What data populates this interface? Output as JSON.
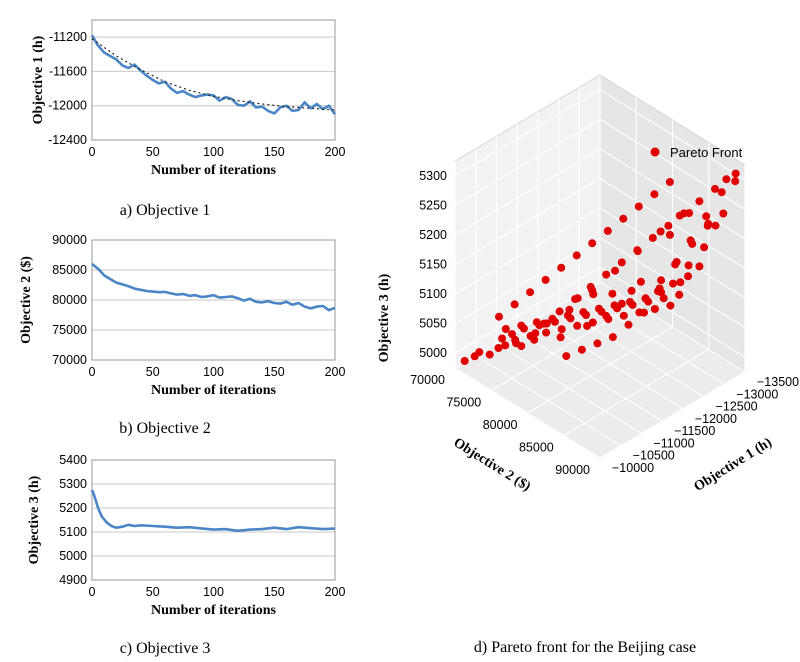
{
  "chart_data": [
    {
      "type": "line",
      "caption": "a) Objective 1",
      "xlabel": "Number of iterations",
      "ylabel": "Objective 1 (h)",
      "xlim": [
        0,
        200
      ],
      "ylim": [
        -12400,
        -11000
      ],
      "x_ticks": [
        "0",
        "50",
        "100",
        "150",
        "200"
      ],
      "y_ticks": [
        "-11200",
        "-11600",
        "-12000",
        "-12400"
      ],
      "y_tick_values": [
        -11200,
        -11600,
        -12000,
        -12400
      ],
      "grid": "horizontal",
      "series": [
        {
          "style": "solid",
          "color": "#4a86c5",
          "x": [
            0,
            5,
            10,
            15,
            20,
            25,
            30,
            35,
            40,
            45,
            50,
            55,
            60,
            65,
            70,
            75,
            80,
            85,
            90,
            95,
            100,
            105,
            110,
            115,
            120,
            125,
            130,
            135,
            140,
            145,
            150,
            155,
            160,
            165,
            170,
            175,
            180,
            185,
            190,
            195,
            200
          ],
          "y": [
            -11180,
            -11300,
            -11380,
            -11420,
            -11460,
            -11530,
            -11560,
            -11520,
            -11590,
            -11650,
            -11700,
            -11740,
            -11720,
            -11800,
            -11850,
            -11830,
            -11870,
            -11900,
            -11880,
            -11870,
            -11880,
            -11940,
            -11900,
            -11920,
            -11990,
            -12000,
            -11950,
            -12020,
            -12010,
            -12060,
            -12090,
            -12020,
            -12000,
            -12060,
            -12050,
            -11960,
            -12030,
            -11980,
            -12040,
            -12000,
            -12100
          ]
        },
        {
          "style": "dotted",
          "color": "#222222",
          "x": [
            0,
            20,
            40,
            60,
            80,
            100,
            120,
            140,
            160,
            180,
            200
          ],
          "y": [
            -11220,
            -11420,
            -11580,
            -11720,
            -11820,
            -11890,
            -11940,
            -11980,
            -12010,
            -12030,
            -12050
          ]
        }
      ]
    },
    {
      "type": "line",
      "caption": "b) Objective 2",
      "xlabel": "Number of iterations",
      "ylabel": "Objective 2 ($)",
      "xlim": [
        0,
        200
      ],
      "ylim": [
        70000,
        90000
      ],
      "x_ticks": [
        "0",
        "50",
        "100",
        "150",
        "200"
      ],
      "y_ticks": [
        "90000",
        "85000",
        "80000",
        "75000",
        "70000"
      ],
      "y_tick_values": [
        90000,
        85000,
        80000,
        75000,
        70000
      ],
      "grid": "horizontal",
      "series": [
        {
          "style": "solid",
          "color": "#4a86c5",
          "x": [
            0,
            5,
            10,
            15,
            20,
            25,
            30,
            35,
            40,
            45,
            50,
            55,
            60,
            65,
            70,
            75,
            80,
            85,
            90,
            95,
            100,
            105,
            110,
            115,
            120,
            125,
            130,
            135,
            140,
            145,
            150,
            155,
            160,
            165,
            170,
            175,
            180,
            185,
            190,
            195,
            200
          ],
          "y": [
            86000,
            85200,
            84100,
            83500,
            82900,
            82600,
            82300,
            81900,
            81700,
            81500,
            81400,
            81300,
            81350,
            81100,
            80900,
            81000,
            80700,
            80800,
            80500,
            80600,
            80800,
            80400,
            80500,
            80600,
            80300,
            79900,
            80200,
            79700,
            79600,
            79800,
            79500,
            79400,
            79700,
            79200,
            79500,
            78900,
            78600,
            78900,
            79000,
            78300,
            78700
          ]
        }
      ]
    },
    {
      "type": "line",
      "caption": "c) Objective 3",
      "xlabel": "Number of iterations",
      "ylabel": "Objective 3 (h)",
      "xlim": [
        0,
        200
      ],
      "ylim": [
        4900,
        5400
      ],
      "x_ticks": [
        "0",
        "50",
        "100",
        "150",
        "200"
      ],
      "y_ticks": [
        "5400",
        "5300",
        "5200",
        "5100",
        "5000",
        "4900"
      ],
      "y_tick_values": [
        5400,
        5300,
        5200,
        5100,
        5000,
        4900
      ],
      "grid": "horizontal",
      "series": [
        {
          "style": "solid",
          "color": "#4a86c5",
          "x": [
            0,
            2,
            5,
            8,
            12,
            16,
            20,
            25,
            30,
            35,
            40,
            50,
            60,
            70,
            80,
            90,
            100,
            110,
            120,
            130,
            140,
            150,
            160,
            170,
            180,
            190,
            200
          ],
          "y": [
            5275,
            5250,
            5200,
            5165,
            5140,
            5125,
            5118,
            5122,
            5130,
            5125,
            5128,
            5125,
            5122,
            5118,
            5120,
            5115,
            5110,
            5112,
            5105,
            5110,
            5112,
            5118,
            5112,
            5120,
            5116,
            5112,
            5114
          ]
        }
      ]
    },
    {
      "type": "scatter",
      "caption": "d) Pareto front for the Beijing case",
      "xlabel": "Objective 1 (h)",
      "ylabel": "Objective 2 ($)",
      "zlabel": "Objective 3 (h)",
      "xlim": [
        -10000,
        -13500
      ],
      "ylim": [
        70000,
        90000
      ],
      "zlim": [
        4975,
        5325
      ],
      "x_ticks": [
        "−10000",
        "−10500",
        "−11000",
        "−11500",
        "−12000",
        "−12500",
        "−13000",
        "−13500"
      ],
      "x_tick_values": [
        -10000,
        -10500,
        -11000,
        -11500,
        -12000,
        -12500,
        -13000,
        -13500
      ],
      "y_ticks": [
        "70000",
        "75000",
        "80000",
        "85000",
        "90000"
      ],
      "y_tick_values": [
        70000,
        75000,
        80000,
        85000,
        90000
      ],
      "z_ticks": [
        "5000",
        "5050",
        "5100",
        "5150",
        "5200",
        "5250",
        "5300"
      ],
      "z_tick_values": [
        5000,
        5050,
        5100,
        5150,
        5200,
        5250,
        5300
      ],
      "legend": {
        "label": "Pareto Front",
        "placement": "top-right"
      },
      "marker_color": "#e00000",
      "points": [
        {
          "o1": -11050,
          "o2": 70500,
          "o3": 4985
        },
        {
          "o1": -11200,
          "o2": 71000,
          "o3": 4990
        },
        {
          "o1": -11400,
          "o2": 71500,
          "o3": 4995
        },
        {
          "o1": -11100,
          "o2": 72000,
          "o3": 4992
        },
        {
          "o1": -11600,
          "o2": 72500,
          "o3": 5000
        },
        {
          "o1": -11300,
          "o2": 73000,
          "o3": 4998
        },
        {
          "o1": -11800,
          "o2": 73500,
          "o3": 5005
        },
        {
          "o1": -11500,
          "o2": 74000,
          "o3": 5003
        },
        {
          "o1": -12000,
          "o2": 74500,
          "o3": 5010
        },
        {
          "o1": -11700,
          "o2": 75000,
          "o3": 5008
        },
        {
          "o1": -12200,
          "o2": 75500,
          "o3": 5015
        },
        {
          "o1": -11900,
          "o2": 76000,
          "o3": 5013
        },
        {
          "o1": -12400,
          "o2": 76500,
          "o3": 5020
        },
        {
          "o1": -12100,
          "o2": 77000,
          "o3": 5018
        },
        {
          "o1": -12600,
          "o2": 77500,
          "o3": 5025
        },
        {
          "o1": -12300,
          "o2": 78000,
          "o3": 5023
        },
        {
          "o1": -12800,
          "o2": 78500,
          "o3": 5030
        },
        {
          "o1": -12500,
          "o2": 79000,
          "o3": 5028
        },
        {
          "o1": -13000,
          "o2": 79500,
          "o3": 5035
        },
        {
          "o1": -12700,
          "o2": 80000,
          "o3": 5033
        },
        {
          "o1": -13200,
          "o2": 80500,
          "o3": 5040
        },
        {
          "o1": -12900,
          "o2": 81000,
          "o3": 5038
        },
        {
          "o1": -13400,
          "o2": 81500,
          "o3": 5045
        },
        {
          "o1": -13100,
          "o2": 82000,
          "o3": 5043
        },
        {
          "o1": -10800,
          "o2": 71500,
          "o3": 5040
        },
        {
          "o1": -11000,
          "o2": 72500,
          "o3": 5060
        },
        {
          "o1": -11200,
          "o2": 73500,
          "o3": 5080
        },
        {
          "o1": -11400,
          "o2": 74500,
          "o3": 5100
        },
        {
          "o1": -11600,
          "o2": 75500,
          "o3": 5120
        },
        {
          "o1": -11800,
          "o2": 76500,
          "o3": 5140
        },
        {
          "o1": -12000,
          "o2": 77500,
          "o3": 5160
        },
        {
          "o1": -12200,
          "o2": 78500,
          "o3": 5180
        },
        {
          "o1": -12400,
          "o2": 79500,
          "o3": 5200
        },
        {
          "o1": -12600,
          "o2": 80500,
          "o3": 5220
        },
        {
          "o1": -12800,
          "o2": 81500,
          "o3": 5240
        },
        {
          "o1": -13000,
          "o2": 82500,
          "o3": 5260
        },
        {
          "o1": -11100,
          "o2": 76000,
          "o3": 5050
        },
        {
          "o1": -11300,
          "o2": 77000,
          "o3": 5070
        },
        {
          "o1": -11500,
          "o2": 78000,
          "o3": 5090
        },
        {
          "o1": -11700,
          "o2": 79000,
          "o3": 5110
        },
        {
          "o1": -11900,
          "o2": 80000,
          "o3": 5130
        },
        {
          "o1": -12100,
          "o2": 81000,
          "o3": 5150
        },
        {
          "o1": -12300,
          "o2": 82000,
          "o3": 5170
        },
        {
          "o1": -12500,
          "o2": 83000,
          "o3": 5190
        },
        {
          "o1": -12700,
          "o2": 84000,
          "o3": 5210
        },
        {
          "o1": -12900,
          "o2": 85000,
          "o3": 5230
        },
        {
          "o1": -13100,
          "o2": 86000,
          "o3": 5250
        },
        {
          "o1": -13300,
          "o2": 87000,
          "o3": 5270
        },
        {
          "o1": -13400,
          "o2": 88000,
          "o3": 5290
        },
        {
          "o1": -13450,
          "o2": 89000,
          "o3": 5305
        },
        {
          "o1": -13350,
          "o2": 89500,
          "o3": 5300
        },
        {
          "o1": -13200,
          "o2": 88500,
          "o3": 5280
        },
        {
          "o1": -13000,
          "o2": 87500,
          "o3": 5240
        },
        {
          "o1": -12800,
          "o2": 86500,
          "o3": 5200
        },
        {
          "o1": -12600,
          "o2": 85500,
          "o3": 5160
        },
        {
          "o1": -12400,
          "o2": 84500,
          "o3": 5120
        },
        {
          "o1": -12200,
          "o2": 83500,
          "o3": 5080
        },
        {
          "o1": -12000,
          "o2": 82500,
          "o3": 5060
        },
        {
          "o1": -11800,
          "o2": 81500,
          "o3": 5040
        },
        {
          "o1": -11600,
          "o2": 80500,
          "o3": 5030
        },
        {
          "o1": -11400,
          "o2": 79500,
          "o3": 5020
        },
        {
          "o1": -11200,
          "o2": 78500,
          "o3": 5010
        },
        {
          "o1": -10900,
          "o2": 74000,
          "o3": 5005
        },
        {
          "o1": -10700,
          "o2": 72000,
          "o3": 4995
        },
        {
          "o1": -10600,
          "o2": 73500,
          "o3": 5015
        },
        {
          "o1": -10900,
          "o2": 77500,
          "o3": 5070
        },
        {
          "o1": -11100,
          "o2": 79500,
          "o3": 5100
        },
        {
          "o1": -11300,
          "o2": 81500,
          "o3": 5140
        },
        {
          "o1": -11500,
          "o2": 83500,
          "o3": 5180
        },
        {
          "o1": -11700,
          "o2": 85500,
          "o3": 5220
        },
        {
          "o1": -11900,
          "o2": 87500,
          "o3": 5260
        },
        {
          "o1": -12100,
          "o2": 89000,
          "o3": 5290
        },
        {
          "o1": -12300,
          "o2": 86500,
          "o3": 5230
        },
        {
          "o1": -12500,
          "o2": 88000,
          "o3": 5270
        },
        {
          "o1": -12700,
          "o2": 89500,
          "o3": 5255
        },
        {
          "o1": -12900,
          "o2": 83500,
          "o3": 5100
        },
        {
          "o1": -13100,
          "o2": 84500,
          "o3": 5130
        },
        {
          "o1": -13300,
          "o2": 85500,
          "o3": 5160
        },
        {
          "o1": -13400,
          "o2": 86500,
          "o3": 5200
        },
        {
          "o1": -13450,
          "o2": 84000,
          "o3": 5110
        },
        {
          "o1": -13250,
          "o2": 82500,
          "o3": 5080
        },
        {
          "o1": -13050,
          "o2": 81000,
          "o3": 5060
        },
        {
          "o1": -12850,
          "o2": 80000,
          "o3": 5050
        },
        {
          "o1": -12650,
          "o2": 79000,
          "o3": 5045
        },
        {
          "o1": -12450,
          "o2": 78000,
          "o3": 5040
        },
        {
          "o1": -12250,
          "o2": 77000,
          "o3": 5035
        },
        {
          "o1": -12050,
          "o2": 76000,
          "o3": 5030
        },
        {
          "o1": -11850,
          "o2": 75000,
          "o3": 5025
        },
        {
          "o1": -11650,
          "o2": 74000,
          "o3": 5020
        },
        {
          "o1": -11450,
          "o2": 73000,
          "o3": 5015
        },
        {
          "o1": -11250,
          "o2": 72000,
          "o3": 5010
        },
        {
          "o1": -11050,
          "o2": 71000,
          "o3": 5005
        },
        {
          "o1": -10500,
          "o2": 70500,
          "o3": 4985
        },
        {
          "o1": -10300,
          "o2": 71000,
          "o3": 4990
        },
        {
          "o1": -10200,
          "o2": 70200,
          "o3": 4980
        },
        {
          "o1": -10400,
          "o2": 72500,
          "o3": 5000
        },
        {
          "o1": -10600,
          "o2": 75000,
          "o3": 5030
        },
        {
          "o1": -10800,
          "o2": 76500,
          "o3": 5050
        },
        {
          "o1": -12150,
          "o2": 84000,
          "o3": 5110
        },
        {
          "o1": -12350,
          "o2": 85000,
          "o3": 5140
        },
        {
          "o1": -12550,
          "o2": 86000,
          "o3": 5170
        },
        {
          "o1": -12750,
          "o2": 87000,
          "o3": 5200
        },
        {
          "o1": -12950,
          "o2": 88000,
          "o3": 5230
        },
        {
          "o1": -13150,
          "o2": 89000,
          "o3": 5250
        },
        {
          "o1": -11550,
          "o2": 82000,
          "o3": 5090
        },
        {
          "o1": -11750,
          "o2": 83000,
          "o3": 5110
        },
        {
          "o1": -11950,
          "o2": 84500,
          "o3": 5150
        },
        {
          "o1": -11350,
          "o2": 80500,
          "o3": 5070
        },
        {
          "o1": -11150,
          "o2": 78000,
          "o3": 5040
        },
        {
          "o1": -10950,
          "o2": 75500,
          "o3": 5025
        },
        {
          "o1": -13350,
          "o2": 83000,
          "o3": 5090
        },
        {
          "o1": -13150,
          "o2": 80000,
          "o3": 5050
        },
        {
          "o1": -12950,
          "o2": 77500,
          "o3": 5040
        },
        {
          "o1": -12750,
          "o2": 76000,
          "o3": 5032
        },
        {
          "o1": -12550,
          "o2": 74500,
          "o3": 5028
        },
        {
          "o1": -12350,
          "o2": 73500,
          "o3": 5022
        }
      ]
    }
  ]
}
